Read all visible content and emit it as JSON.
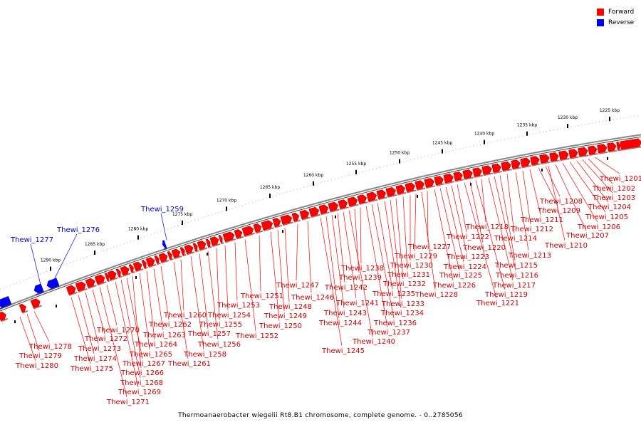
{
  "colors": {
    "forward": "#ff0000",
    "reverse": "#0000ff",
    "backbone": "#777777",
    "label_forward": "#cc0000",
    "label_reverse": "#0000cc"
  },
  "legend": {
    "forward": "Forward",
    "reverse": "Reverse"
  },
  "caption": "Thermoanaerobacter wiegelii Rt8.B1 chromosome, complete genome. - 0..2785056",
  "scale_ticks": [
    "1225 kbp",
    "1230 kbp",
    "1235 kbp",
    "1240 kbp",
    "1245 kbp",
    "1250 kbp",
    "1255 kbp",
    "1260 kbp",
    "1265 kbp",
    "1270 kbp",
    "1275 kbp",
    "1280 kbp",
    "1285 kbp",
    "1290 kbp"
  ],
  "genes": [
    {
      "name": "Thewi_1201",
      "strand": "forward"
    },
    {
      "name": "Thewi_1202",
      "strand": "forward"
    },
    {
      "name": "Thewi_1203",
      "strand": "forward"
    },
    {
      "name": "Thewi_1204",
      "strand": "forward"
    },
    {
      "name": "Thewi_1205",
      "strand": "forward"
    },
    {
      "name": "Thewi_1206",
      "strand": "forward"
    },
    {
      "name": "Thewi_1207",
      "strand": "forward"
    },
    {
      "name": "Thewi_1208",
      "strand": "forward"
    },
    {
      "name": "Thewi_1209",
      "strand": "forward"
    },
    {
      "name": "Thewi_1210",
      "strand": "forward"
    },
    {
      "name": "Thewi_1211",
      "strand": "forward"
    },
    {
      "name": "Thewi_1212",
      "strand": "forward"
    },
    {
      "name": "Thewi_1213",
      "strand": "forward"
    },
    {
      "name": "Thewi_1214",
      "strand": "forward"
    },
    {
      "name": "Thewi_1215",
      "strand": "forward"
    },
    {
      "name": "Thewi_1216",
      "strand": "forward"
    },
    {
      "name": "Thewi_1217",
      "strand": "forward"
    },
    {
      "name": "Thewi_1218",
      "strand": "forward"
    },
    {
      "name": "Thewi_1219",
      "strand": "forward"
    },
    {
      "name": "Thewi_1220",
      "strand": "forward"
    },
    {
      "name": "Thewi_1221",
      "strand": "forward"
    },
    {
      "name": "Thewi_1222",
      "strand": "forward"
    },
    {
      "name": "Thewi_1223",
      "strand": "forward"
    },
    {
      "name": "Thewi_1224",
      "strand": "forward"
    },
    {
      "name": "Thewi_1225",
      "strand": "forward"
    },
    {
      "name": "Thewi_1226",
      "strand": "forward"
    },
    {
      "name": "Thewi_1227",
      "strand": "forward"
    },
    {
      "name": "Thewi_1228",
      "strand": "forward"
    },
    {
      "name": "Thewi_1229",
      "strand": "forward"
    },
    {
      "name": "Thewi_1230",
      "strand": "forward"
    },
    {
      "name": "Thewi_1231",
      "strand": "forward"
    },
    {
      "name": "Thewi_1232",
      "strand": "forward"
    },
    {
      "name": "Thewi_1233",
      "strand": "forward"
    },
    {
      "name": "Thewi_1234",
      "strand": "forward"
    },
    {
      "name": "Thewi_1235",
      "strand": "forward"
    },
    {
      "name": "Thewi_1236",
      "strand": "forward"
    },
    {
      "name": "Thewi_1237",
      "strand": "forward"
    },
    {
      "name": "Thewi_1238",
      "strand": "forward"
    },
    {
      "name": "Thewi_1239",
      "strand": "forward"
    },
    {
      "name": "Thewi_1240",
      "strand": "forward"
    },
    {
      "name": "Thewi_1241",
      "strand": "forward"
    },
    {
      "name": "Thewi_1242",
      "strand": "forward"
    },
    {
      "name": "Thewi_1243",
      "strand": "forward"
    },
    {
      "name": "Thewi_1244",
      "strand": "forward"
    },
    {
      "name": "Thewi_1245",
      "strand": "forward"
    },
    {
      "name": "Thewi_1246",
      "strand": "forward"
    },
    {
      "name": "Thewi_1247",
      "strand": "forward"
    },
    {
      "name": "Thewi_1248",
      "strand": "forward"
    },
    {
      "name": "Thewi_1249",
      "strand": "forward"
    },
    {
      "name": "Thewi_1250",
      "strand": "forward"
    },
    {
      "name": "Thewi_1251",
      "strand": "forward"
    },
    {
      "name": "Thewi_1252",
      "strand": "forward"
    },
    {
      "name": "Thewi_1253",
      "strand": "forward"
    },
    {
      "name": "Thewi_1254",
      "strand": "forward"
    },
    {
      "name": "Thewi_1255",
      "strand": "forward"
    },
    {
      "name": "Thewi_1256",
      "strand": "forward"
    },
    {
      "name": "Thewi_1257",
      "strand": "forward"
    },
    {
      "name": "Thewi_1258",
      "strand": "forward"
    },
    {
      "name": "Thewi_1259",
      "strand": "reverse"
    },
    {
      "name": "Thewi_1260",
      "strand": "forward"
    },
    {
      "name": "Thewi_1261",
      "strand": "forward"
    },
    {
      "name": "Thewi_1262",
      "strand": "forward"
    },
    {
      "name": "Thewi_1263",
      "strand": "forward"
    },
    {
      "name": "Thewi_1264",
      "strand": "forward"
    },
    {
      "name": "Thewi_1265",
      "strand": "forward"
    },
    {
      "name": "Thewi_1266",
      "strand": "forward"
    },
    {
      "name": "Thewi_1267",
      "strand": "forward"
    },
    {
      "name": "Thewi_1268",
      "strand": "forward"
    },
    {
      "name": "Thewi_1269",
      "strand": "forward"
    },
    {
      "name": "Thewi_1270",
      "strand": "forward"
    },
    {
      "name": "Thewi_1271",
      "strand": "forward"
    },
    {
      "name": "Thewi_1272",
      "strand": "forward"
    },
    {
      "name": "Thewi_1273",
      "strand": "forward"
    },
    {
      "name": "Thewi_1274",
      "strand": "forward"
    },
    {
      "name": "Thewi_1275",
      "strand": "forward"
    },
    {
      "name": "Thewi_1276",
      "strand": "reverse"
    },
    {
      "name": "Thewi_1277",
      "strand": "reverse"
    },
    {
      "name": "Thewi_1278",
      "strand": "forward"
    },
    {
      "name": "Thewi_1279",
      "strand": "forward"
    },
    {
      "name": "Thewi_1280",
      "strand": "forward"
    }
  ]
}
